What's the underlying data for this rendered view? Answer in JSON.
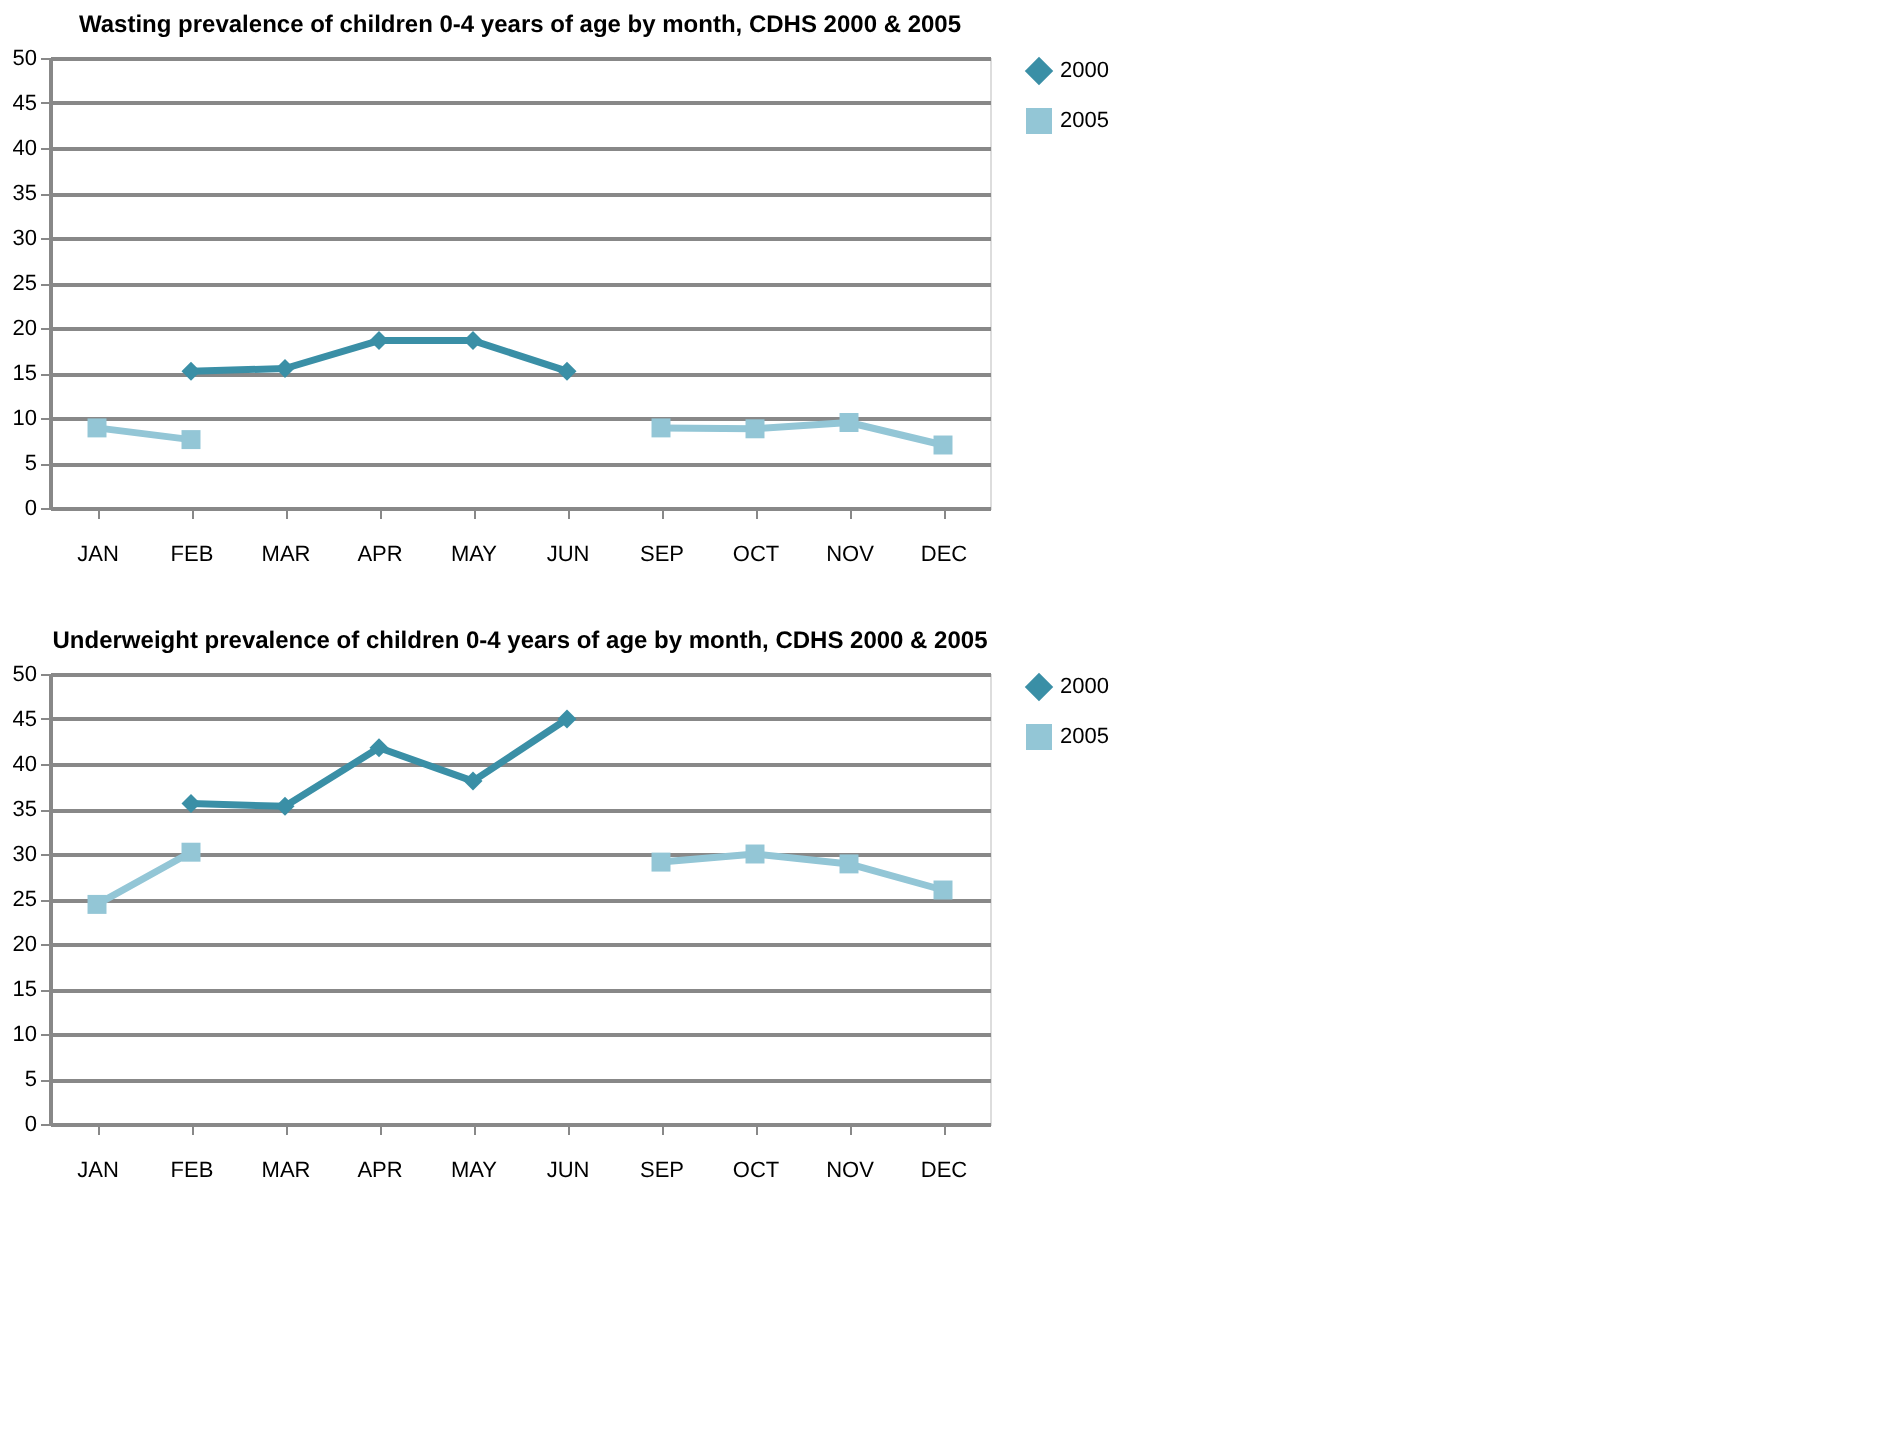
{
  "chart_data": [
    {
      "type": "line",
      "title": "Wasting prevalence of children 0-4 years of age by month, CDHS 2000 & 2005",
      "categories": [
        "JAN",
        "FEB",
        "MAR",
        "APR",
        "MAY",
        "JUN",
        "SEP",
        "OCT",
        "NOV",
        "DEC"
      ],
      "ylim": [
        0,
        50
      ],
      "yticks": [
        0,
        5,
        10,
        15,
        20,
        25,
        30,
        35,
        40,
        45,
        50
      ],
      "grid": "y",
      "legend": "right",
      "series": [
        {
          "name": "2000",
          "color": "#3a8fa6",
          "marker": "diamond",
          "values": [
            null,
            15.2,
            15.5,
            18.6,
            18.6,
            15.2,
            null,
            null,
            null,
            null
          ]
        },
        {
          "name": "2005",
          "color": "#93c6d6",
          "marker": "square",
          "values": [
            8.9,
            7.6,
            null,
            null,
            null,
            null,
            8.9,
            8.8,
            9.5,
            7.0
          ]
        }
      ]
    },
    {
      "type": "line",
      "title": "Underweight prevalence of children 0-4 years of age by month, CDHS 2000 & 2005",
      "categories": [
        "JAN",
        "FEB",
        "MAR",
        "APR",
        "MAY",
        "JUN",
        "SEP",
        "OCT",
        "NOV",
        "DEC"
      ],
      "ylim": [
        0,
        50
      ],
      "yticks": [
        0,
        5,
        10,
        15,
        20,
        25,
        30,
        35,
        40,
        45,
        50
      ],
      "grid": "y",
      "legend": "right",
      "series": [
        {
          "name": "2000",
          "color": "#3a8fa6",
          "marker": "diamond",
          "values": [
            null,
            35.6,
            35.3,
            41.8,
            38.1,
            45.0,
            null,
            null,
            null,
            null
          ]
        },
        {
          "name": "2005",
          "color": "#93c6d6",
          "marker": "square",
          "values": [
            24.4,
            30.2,
            null,
            null,
            null,
            null,
            29.1,
            30.0,
            28.9,
            26.0
          ]
        }
      ]
    }
  ]
}
